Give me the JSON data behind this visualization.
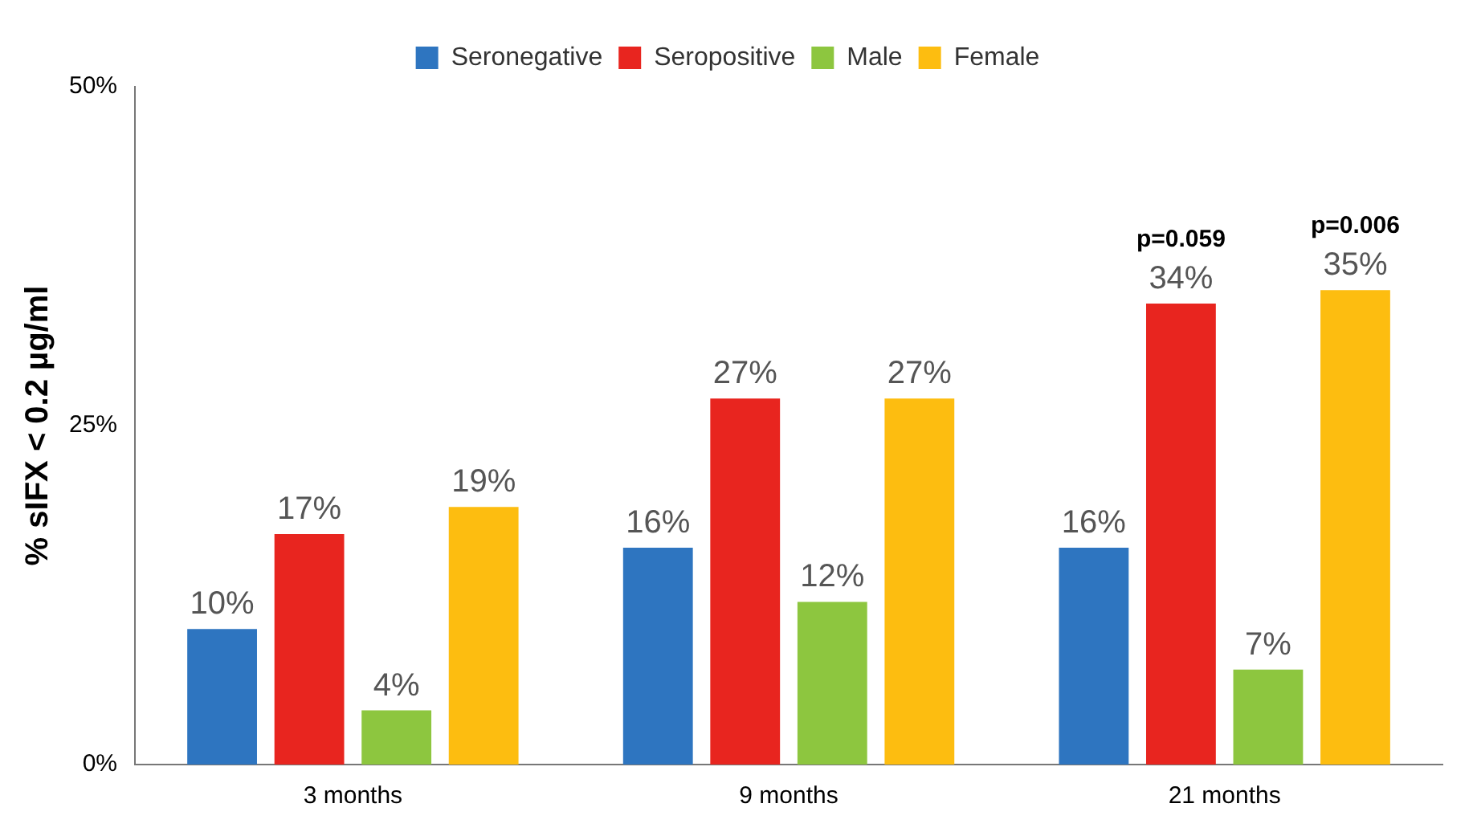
{
  "chart_data": {
    "type": "bar",
    "ylabel": "% sIFX < 0.2 µg/ml",
    "categories": [
      "3 months",
      "9 months",
      "21 months"
    ],
    "series": [
      {
        "name": "Seronegative",
        "color": "#2e75c0",
        "values": [
          10,
          16,
          16
        ]
      },
      {
        "name": "Seropositive",
        "color": "#e8251f",
        "values": [
          17,
          27,
          34
        ]
      },
      {
        "name": "Male",
        "color": "#8dc63f",
        "values": [
          4,
          12,
          7
        ]
      },
      {
        "name": "Female",
        "color": "#fdbd10",
        "values": [
          19,
          27,
          35
        ]
      }
    ],
    "ylim": [
      0,
      50
    ],
    "yticks": [
      {
        "value": 0,
        "label": "0%"
      },
      {
        "value": 25,
        "label": "25%"
      },
      {
        "value": 50,
        "label": "50%"
      }
    ],
    "value_labels": [
      [
        "10%",
        "16%",
        "16%"
      ],
      [
        "17%",
        "27%",
        "34%"
      ],
      [
        "4%",
        "12%",
        "7%"
      ],
      [
        "19%",
        "27%",
        "35%"
      ]
    ],
    "annotations": [
      "p=0.059",
      "p=0.006"
    ],
    "legend": "top",
    "grid": false
  }
}
